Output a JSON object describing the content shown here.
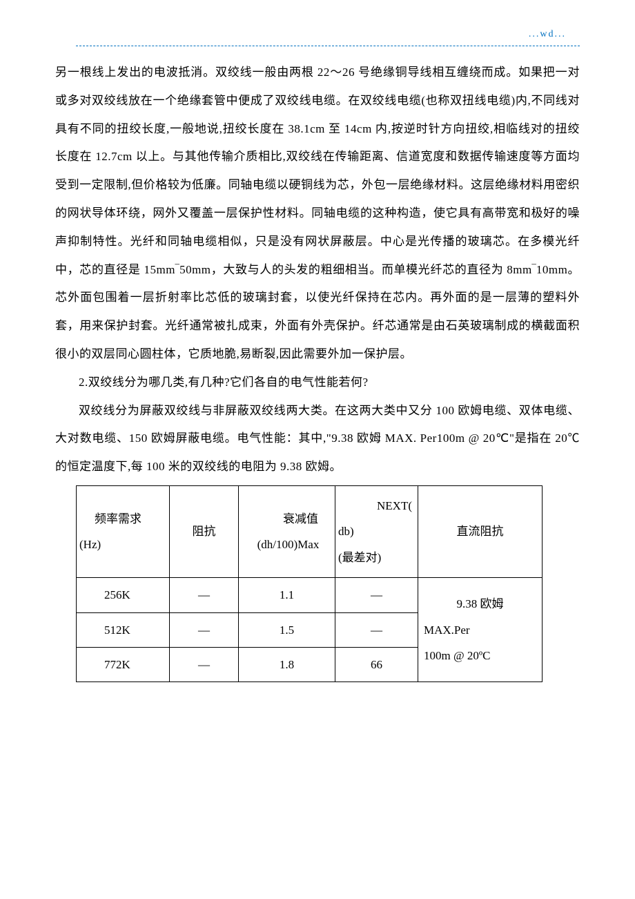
{
  "header": {
    "marker": "...wd..."
  },
  "paragraphs": {
    "p1": "另一根线上发出的电波抵消。双绞线一般由两根 22～26 号绝缘铜导线相互缠绕而成。如果把一对或多对双绞线放在一个绝缘套管中便成了双绞线电缆。在双绞线电缆(也称双扭线电缆)内,不同线对具有不同的扭绞长度,一般地说,扭绞长度在 38.1cm 至 14cm 内,按逆时针方向扭绞,相临线对的扭绞长度在 12.7cm 以上。与其他传输介质相比,双绞线在传输距离、信道宽度和数据传输速度等方面均受到一定限制,但价格较为低廉。同轴电缆以硬铜线为芯，外包一层绝缘材料。这层绝缘材料用密织的网状导体环绕，网外又覆盖一层保护性材料。同轴电缆的这种构造，使它具有高带宽和极好的噪声抑制特性。光纤和同轴电缆相似，只是没有网状屏蔽层。中心是光传播的玻璃芯。在多模光纤中，芯的直径是 15mm‾50mm，大致与人的头发的粗细相当。而单模光纤芯的直径为 8mm‾10mm。芯外面包围着一层折射率比芯低的玻璃封套，以使光纤保持在芯内。再外面的是一层薄的塑料外套，用来保护封套。光纤通常被扎成束，外面有外壳保护。纤芯通常是由石英玻璃制成的横截面积很小的双层同心圆柱体，它质地脆,易断裂,因此需要外加一保护层。",
    "q2": "2.双绞线分为哪几类,有几种?它们各自的电气性能若何?",
    "a2": "双绞线分为屏蔽双绞线与非屏蔽双绞线两大类。在这两大类中又分 100 欧姆电缆、双体电缆、大对数电缆、150 欧姆屏蔽电缆。电气性能：其中,\"9.38 欧姆 MAX. Per100m @ 20℃\"是指在 20℃的恒定温度下,每 100 米的双绞线的电阻为 9.38 欧姆。"
  },
  "table": {
    "columns": {
      "freq_label": "频率需求",
      "freq_unit": "(Hz)",
      "impedance": "阻抗",
      "atten_label": "衰减值",
      "atten_unit": "(dh/100)Max",
      "next_label": "NEXT(",
      "next_mid": "db)",
      "next_sub": "(最差对)",
      "dc": "直流阻抗"
    },
    "rows": [
      {
        "freq": "256K",
        "imp": "—",
        "atten": "1.1",
        "next": "—"
      },
      {
        "freq": "512K",
        "imp": "—",
        "atten": "1.5",
        "next": "—"
      },
      {
        "freq": "772K",
        "imp": "—",
        "atten": "1.8",
        "next": "66"
      }
    ],
    "dc_value_line1": "9.38 欧姆",
    "dc_value_line2": "MAX.Per",
    "dc_value_line3": "100m @ 20ºC",
    "styling": {
      "border_color": "#000000",
      "text_color": "#000000",
      "font_size_pt": 12,
      "background": "#ffffff"
    }
  },
  "colors": {
    "header_blue": "#0070c0",
    "text_black": "#000000",
    "background": "#ffffff"
  }
}
